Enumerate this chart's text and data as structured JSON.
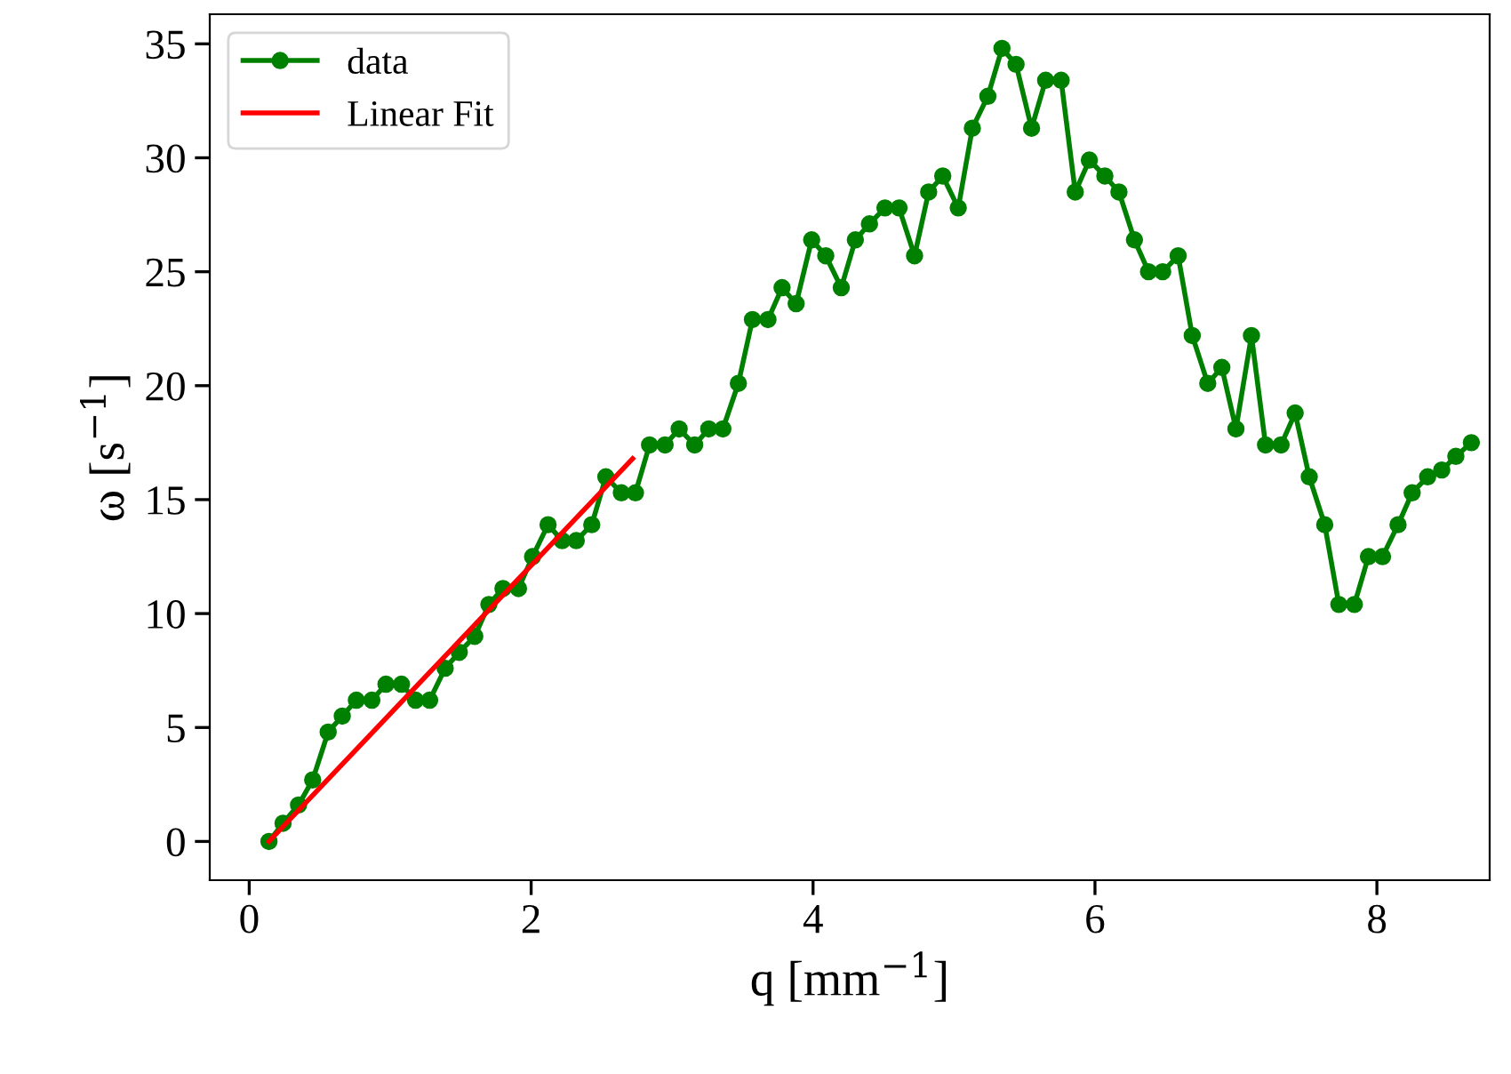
{
  "chart_data": {
    "type": "line",
    "xlabel": "q [mm$^{−1}$]",
    "ylabel": "ω [s$^{−1}$]",
    "xlim": [
      -0.28,
      8.8
    ],
    "ylim": [
      -1.7,
      36.3
    ],
    "xticks": [
      0,
      2,
      4,
      6,
      8
    ],
    "yticks": [
      0,
      5,
      10,
      15,
      20,
      25,
      30,
      35
    ],
    "legend": "top left",
    "grid": false,
    "series": [
      {
        "name": "data",
        "color": "#008000",
        "marker": "circle",
        "x": [
          0.14,
          0.24,
          0.35,
          0.45,
          0.56,
          0.66,
          0.76,
          0.87,
          0.97,
          1.08,
          1.18,
          1.28,
          1.39,
          1.49,
          1.6,
          1.7,
          1.8,
          1.91,
          2.01,
          2.12,
          2.22,
          2.32,
          2.43,
          2.53,
          2.64,
          2.74,
          2.84,
          2.95,
          3.05,
          3.16,
          3.26,
          3.36,
          3.47,
          3.57,
          3.68,
          3.78,
          3.88,
          3.99,
          4.09,
          4.2,
          4.3,
          4.4,
          4.51,
          4.61,
          4.72,
          4.82,
          4.92,
          5.03,
          5.13,
          5.24,
          5.34,
          5.44,
          5.55,
          5.65,
          5.76,
          5.86,
          5.96,
          6.07,
          6.17,
          6.28,
          6.38,
          6.48,
          6.59,
          6.69,
          6.8,
          6.9,
          7.0,
          7.11,
          7.21,
          7.32,
          7.42,
          7.52,
          7.63,
          7.73,
          7.84,
          7.94,
          8.04,
          8.15,
          8.25,
          8.36,
          8.46,
          8.56,
          8.67
        ],
        "values": [
          0,
          0.8,
          1.6,
          2.7,
          4.8,
          5.5,
          6.2,
          6.2,
          6.9,
          6.9,
          6.2,
          6.2,
          7.6,
          8.3,
          9.0,
          10.4,
          11.1,
          11.1,
          12.5,
          13.9,
          13.2,
          13.2,
          13.9,
          16.0,
          15.3,
          15.3,
          17.4,
          17.4,
          18.1,
          17.4,
          18.1,
          18.1,
          20.1,
          22.9,
          22.9,
          24.3,
          23.6,
          26.4,
          25.7,
          24.3,
          26.4,
          27.1,
          27.8,
          27.8,
          25.7,
          28.5,
          29.2,
          27.8,
          31.3,
          32.7,
          34.8,
          34.1,
          31.3,
          33.4,
          33.4,
          28.5,
          29.9,
          29.2,
          28.5,
          26.4,
          25.0,
          25.0,
          25.7,
          22.2,
          20.1,
          20.8,
          18.1,
          22.2,
          17.4,
          17.4,
          18.8,
          16.0,
          13.9,
          10.4,
          10.4,
          12.5,
          12.5,
          13.9,
          15.3,
          16.0,
          16.3,
          16.9,
          17.5
        ]
      },
      {
        "name": "Linear Fit",
        "color": "#ff0000",
        "marker": "none",
        "x": [
          0.14,
          2.72
        ],
        "values": [
          0,
          16.8
        ]
      }
    ]
  }
}
